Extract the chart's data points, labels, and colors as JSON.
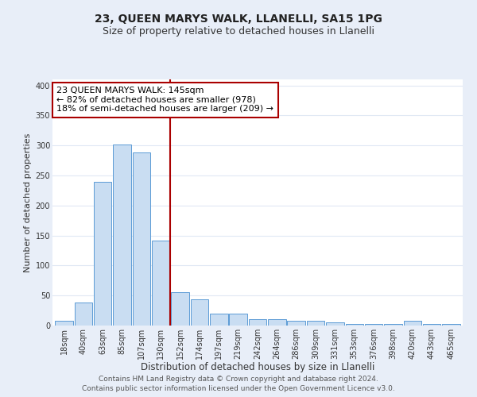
{
  "title": "23, QUEEN MARYS WALK, LLANELLI, SA15 1PG",
  "subtitle": "Size of property relative to detached houses in Llanelli",
  "xlabel": "Distribution of detached houses by size in Llanelli",
  "ylabel": "Number of detached properties",
  "bar_labels": [
    "18sqm",
    "40sqm",
    "63sqm",
    "85sqm",
    "107sqm",
    "130sqm",
    "152sqm",
    "174sqm",
    "197sqm",
    "219sqm",
    "242sqm",
    "264sqm",
    "286sqm",
    "309sqm",
    "331sqm",
    "353sqm",
    "376sqm",
    "398sqm",
    "420sqm",
    "443sqm",
    "465sqm"
  ],
  "bar_values": [
    8,
    38,
    240,
    302,
    288,
    142,
    55,
    43,
    20,
    20,
    10,
    10,
    8,
    8,
    5,
    3,
    2,
    2,
    8,
    2,
    2
  ],
  "bar_color": "#c9ddf2",
  "bar_edge_color": "#5b9bd5",
  "vline_x": 6.0,
  "vline_color": "#aa0000",
  "annotation_title": "23 QUEEN MARYS WALK: 145sqm",
  "annotation_line1": "← 82% of detached houses are smaller (978)",
  "annotation_line2": "18% of semi-detached houses are larger (209) →",
  "annotation_box_color": "#aa0000",
  "ylim": [
    0,
    410
  ],
  "yticks": [
    0,
    50,
    100,
    150,
    200,
    250,
    300,
    350,
    400
  ],
  "footer1": "Contains HM Land Registry data © Crown copyright and database right 2024.",
  "footer2": "Contains public sector information licensed under the Open Government Licence v3.0.",
  "bg_color": "#e8eef8",
  "plot_bg_color": "#ffffff",
  "grid_color": "#e0e8f4",
  "title_fontsize": 10,
  "subtitle_fontsize": 9,
  "xlabel_fontsize": 8.5,
  "ylabel_fontsize": 8,
  "tick_fontsize": 7,
  "annotation_fontsize": 8,
  "footer_fontsize": 6.5
}
